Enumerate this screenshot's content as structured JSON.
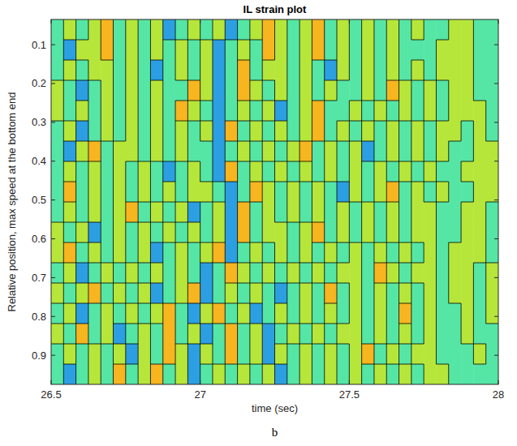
{
  "chart_data": {
    "type": "contour",
    "title": "IL strain plot",
    "x_label": "time (sec)",
    "y_label": "Relative position, max speed at the bottom end",
    "panel_label": "b",
    "xlim": [
      26.5,
      28
    ],
    "xticks": [
      26.5,
      27,
      27.5,
      28
    ],
    "ylim": [
      0.035,
      0.975
    ],
    "yticks": [
      0.1,
      0.2,
      0.3,
      0.4,
      0.5,
      0.6,
      0.7,
      0.8,
      0.9
    ],
    "levels": [
      -1.5,
      0,
      1.5
    ],
    "colors": [
      "#2c9fe2",
      "#55e6a6",
      "#b6e63a",
      "#f7b51f"
    ],
    "z": [
      [
        -1,
        1,
        -1,
        1,
        2,
        -1,
        1,
        -1,
        1,
        -2,
        -1,
        1,
        -1,
        1,
        -2,
        -1,
        1,
        2,
        1,
        -1,
        1,
        2,
        -1,
        1,
        -1,
        1,
        -1,
        1,
        -1,
        1,
        -1,
        -1,
        1,
        1,
        -1,
        -1
      ],
      [
        -1,
        -2,
        1,
        1,
        2,
        -1,
        1,
        -1,
        1,
        -1,
        1,
        -1,
        1,
        -2,
        -1,
        1,
        -1,
        2,
        1,
        -1,
        1,
        2,
        -1,
        1,
        -1,
        1,
        -1,
        1,
        -1,
        -1,
        -1,
        1,
        1,
        1,
        -1,
        -1
      ],
      [
        -1,
        1,
        -1,
        1,
        1,
        -1,
        1,
        -1,
        -2,
        -1,
        1,
        -1,
        1,
        -2,
        -1,
        2,
        -1,
        1,
        1,
        -1,
        1,
        -1,
        -2,
        1,
        -1,
        1,
        -1,
        1,
        -1,
        1,
        -1,
        1,
        1,
        1,
        -1,
        -1
      ],
      [
        1,
        -1,
        -2,
        -1,
        1,
        -1,
        1,
        -1,
        1,
        -1,
        -1,
        2,
        1,
        -2,
        -1,
        2,
        1,
        -1,
        1,
        -1,
        1,
        -1,
        1,
        -1,
        -1,
        1,
        -1,
        2,
        1,
        -1,
        1,
        -1,
        1,
        1,
        -1,
        -1
      ],
      [
        1,
        -1,
        1,
        -1,
        1,
        -1,
        1,
        -1,
        1,
        -1,
        2,
        1,
        -1,
        -2,
        -1,
        1,
        -1,
        1,
        -2,
        -1,
        1,
        2,
        -1,
        -1,
        1,
        -1,
        1,
        -1,
        1,
        -1,
        1,
        -1,
        1,
        1,
        1,
        -1
      ],
      [
        -1,
        1,
        -2,
        -1,
        1,
        -1,
        1,
        -1,
        1,
        -1,
        1,
        -1,
        1,
        -2,
        2,
        -1,
        1,
        -1,
        1,
        -1,
        1,
        2,
        -1,
        1,
        -1,
        1,
        -1,
        1,
        -1,
        1,
        -1,
        1,
        1,
        -1,
        1,
        -1
      ],
      [
        -1,
        -2,
        1,
        2,
        -1,
        1,
        1,
        -1,
        1,
        -1,
        1,
        -1,
        -1,
        -2,
        -1,
        1,
        -1,
        1,
        -1,
        1,
        2,
        -1,
        1,
        -1,
        1,
        -2,
        -1,
        1,
        -1,
        1,
        -1,
        1,
        -1,
        -1,
        1,
        1
      ],
      [
        -1,
        1,
        -1,
        1,
        -1,
        1,
        -1,
        1,
        -1,
        -2,
        -1,
        1,
        -1,
        -2,
        2,
        -1,
        1,
        -1,
        1,
        -1,
        1,
        -1,
        1,
        -1,
        1,
        -1,
        1,
        -1,
        1,
        -1,
        1,
        -1,
        -1,
        1,
        1,
        1
      ],
      [
        -1,
        2,
        -1,
        1,
        -1,
        1,
        -1,
        1,
        -1,
        1,
        -1,
        1,
        1,
        -1,
        -2,
        -1,
        2,
        1,
        -1,
        1,
        -1,
        1,
        -1,
        -2,
        1,
        -1,
        1,
        2,
        -1,
        1,
        -1,
        1,
        -1,
        -1,
        1,
        1
      ],
      [
        -1,
        1,
        -1,
        1,
        -1,
        1,
        2,
        -1,
        1,
        -1,
        1,
        -2,
        -1,
        1,
        -2,
        2,
        -1,
        1,
        -1,
        1,
        -1,
        1,
        -1,
        1,
        -1,
        1,
        -1,
        1,
        -1,
        1,
        1,
        -1,
        -1,
        1,
        1,
        -1
      ],
      [
        1,
        -1,
        1,
        -2,
        -1,
        1,
        -1,
        1,
        -1,
        1,
        -1,
        1,
        -1,
        1,
        -2,
        2,
        -1,
        1,
        1,
        -1,
        1,
        2,
        -1,
        1,
        -1,
        1,
        -1,
        1,
        -1,
        1,
        1,
        -1,
        -1,
        1,
        1,
        -1
      ],
      [
        1,
        2,
        -1,
        1,
        -1,
        1,
        -1,
        1,
        -2,
        -1,
        1,
        -1,
        1,
        2,
        -2,
        -1,
        1,
        -1,
        1,
        -1,
        1,
        -1,
        1,
        -1,
        1,
        -1,
        1,
        -1,
        1,
        -1,
        1,
        -1,
        1,
        1,
        1,
        -1
      ],
      [
        -1,
        1,
        -2,
        -1,
        1,
        -1,
        1,
        -1,
        1,
        -1,
        1,
        -1,
        -2,
        -1,
        2,
        1,
        -1,
        1,
        -1,
        1,
        -1,
        1,
        -1,
        1,
        1,
        -1,
        2,
        1,
        -1,
        1,
        1,
        -1,
        1,
        1,
        -1,
        1
      ],
      [
        1,
        -1,
        1,
        2,
        -1,
        1,
        -1,
        1,
        -2,
        -1,
        1,
        2,
        -2,
        -1,
        1,
        -1,
        1,
        -1,
        -2,
        -1,
        1,
        -1,
        2,
        -1,
        1,
        -1,
        1,
        -1,
        1,
        -1,
        1,
        -1,
        1,
        1,
        -1,
        1
      ],
      [
        -1,
        1,
        -2,
        -1,
        1,
        -1,
        1,
        -1,
        1,
        2,
        -1,
        -2,
        1,
        2,
        -1,
        1,
        -2,
        -1,
        1,
        -1,
        1,
        -1,
        1,
        -1,
        1,
        -1,
        1,
        -1,
        2,
        -1,
        1,
        -1,
        -1,
        1,
        -1,
        1
      ],
      [
        1,
        -1,
        2,
        -1,
        1,
        -2,
        -1,
        1,
        -1,
        2,
        -1,
        1,
        -2,
        -1,
        2,
        -1,
        1,
        -2,
        -1,
        1,
        -1,
        1,
        -1,
        1,
        1,
        -1,
        1,
        -1,
        1,
        -1,
        1,
        -1,
        -1,
        1,
        -1,
        -1
      ],
      [
        -1,
        1,
        -1,
        1,
        -1,
        1,
        -2,
        1,
        -1,
        2,
        1,
        -2,
        1,
        -1,
        2,
        -1,
        1,
        -2,
        1,
        -1,
        1,
        -1,
        1,
        -1,
        1,
        2,
        -1,
        1,
        -1,
        1,
        1,
        -1,
        -1,
        -1,
        1,
        -1
      ],
      [
        -1,
        -2,
        -1,
        1,
        -1,
        2,
        -1,
        1,
        2,
        -1,
        1,
        -2,
        -1,
        1,
        -1,
        1,
        -1,
        1,
        -2,
        -1,
        1,
        -1,
        1,
        -1,
        1,
        -1,
        1,
        -1,
        1,
        -1,
        1,
        1,
        -1,
        -1,
        -1,
        -1
      ]
    ]
  }
}
